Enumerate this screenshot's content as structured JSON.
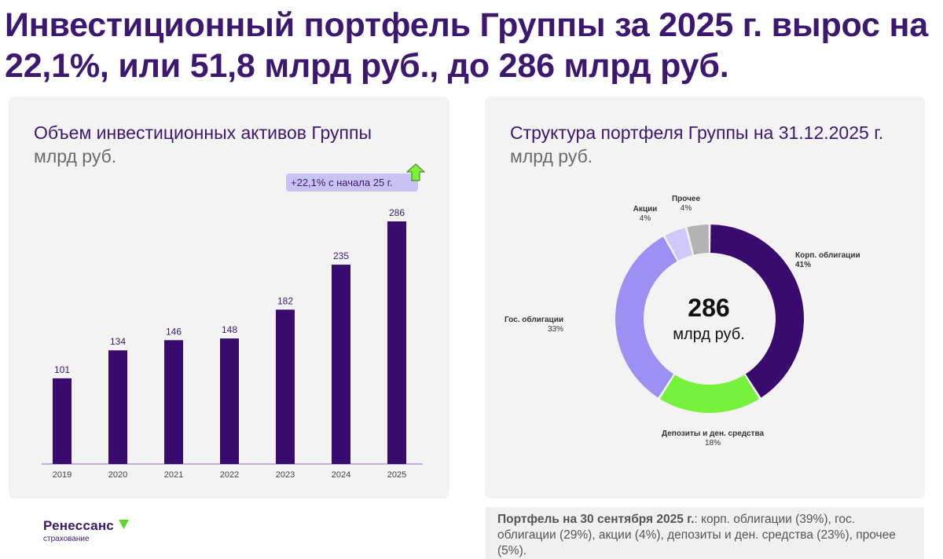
{
  "header": {
    "title": "Инвестиционный портфель Группы за 2025 г. вырос на 22,1%, или 51,8 млрд руб., до 286 млрд руб."
  },
  "bar_panel": {
    "title": "Объем инвестиционных активов Группы",
    "unit": "млрд руб.",
    "growth_badge": "+22,1% с начала 25 г."
  },
  "donut_panel": {
    "title": "Структура портфеля Группы на 31.12.2025 г.",
    "unit": "млрд руб.",
    "center_value": "286",
    "center_unit": "млрд руб."
  },
  "footnote": {
    "bold": "Портфель на 30 сентября 2025 г.",
    "text": ": корп. облигации (39%), гос. облигации (29%), акции (4%), депозиты и ден. средства (23%), прочее (5%)."
  },
  "logo": {
    "name": "Ренессанс",
    "sub": "страхование"
  },
  "colors": {
    "title": "#3c1870",
    "bar": "#3a0b6e",
    "axis": "#8a6fb0",
    "badge_bg": "#c8c3f3",
    "arrow": "#7ef03a",
    "corp": "#3a0b6e",
    "deposits": "#77f23c",
    "gov": "#9e90f2",
    "stocks": "#cfc8f8",
    "other": "#b3b3b3"
  },
  "chart_data": [
    {
      "type": "bar",
      "title": "Объем инвестиционных активов Группы",
      "ylabel": "млрд руб.",
      "categories": [
        "2019",
        "2020",
        "2021",
        "2022",
        "2023",
        "2024",
        "2025"
      ],
      "values": [
        101,
        134,
        146,
        148,
        182,
        235,
        286
      ],
      "ylim": [
        0,
        300
      ],
      "grid": false
    },
    {
      "type": "pie",
      "title": "Структура портфеля Группы на 31.12.2025 г.",
      "unit": "млрд руб.",
      "total": 286,
      "slices": [
        {
          "label": "Корп. облигации",
          "pct": 41,
          "pct_label": "41%",
          "color_key": "corp"
        },
        {
          "label": "Депозиты и ден. средства",
          "pct": 18,
          "pct_label": "18%",
          "color_key": "deposits"
        },
        {
          "label": "Гос. облигации",
          "pct": 33,
          "pct_label": "33%",
          "color_key": "gov"
        },
        {
          "label": "Акции",
          "pct": 4,
          "pct_label": "4%",
          "color_key": "stocks"
        },
        {
          "label": "Прочее",
          "pct": 4,
          "pct_label": "4%",
          "color_key": "other"
        }
      ]
    }
  ]
}
